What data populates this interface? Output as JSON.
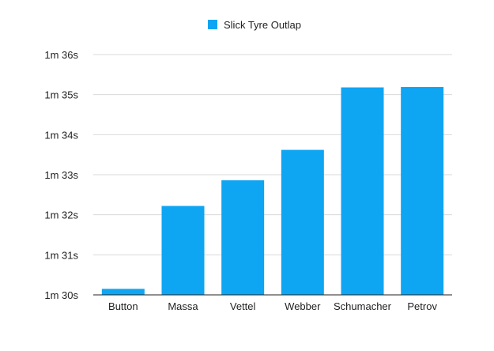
{
  "chart_data": {
    "type": "bar",
    "categories": [
      "Button",
      "Massa",
      "Vettel",
      "Webber",
      "Schumacher",
      "Petrov"
    ],
    "series": [
      {
        "name": "Slick Tyre Outlap",
        "color": "#0ea5f3",
        "values": [
          90.15,
          92.22,
          92.86,
          93.62,
          95.18,
          95.19
        ]
      }
    ],
    "y_ticks": [
      {
        "value": 90,
        "label": "1m 30s"
      },
      {
        "value": 91,
        "label": "1m 31s"
      },
      {
        "value": 92,
        "label": "1m 32s"
      },
      {
        "value": 93,
        "label": "1m 33s"
      },
      {
        "value": 94,
        "label": "1m 34s"
      },
      {
        "value": 95,
        "label": "1m 35s"
      },
      {
        "value": 96,
        "label": "1m 36s"
      }
    ],
    "ylim": [
      90,
      96
    ],
    "title": "",
    "xlabel": "",
    "ylabel": "",
    "grid": true,
    "legend_position": "top-center"
  }
}
